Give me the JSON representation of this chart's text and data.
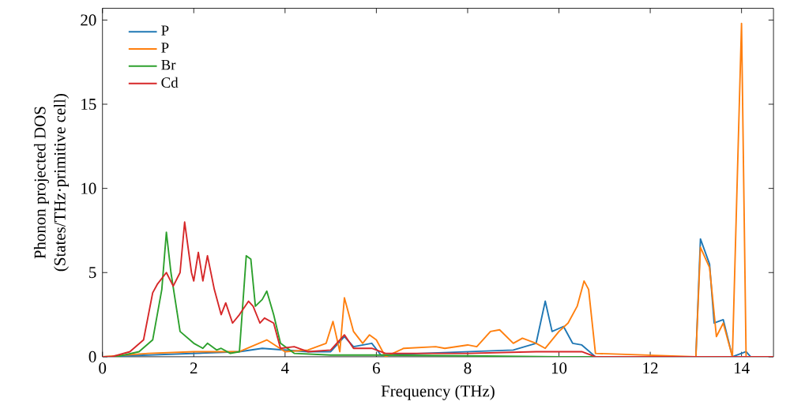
{
  "chart_data": {
    "type": "line",
    "xlabel": "Frequency (THz)",
    "ylabel": "Phonon projected DOS\n(States/THz·primitive cell)",
    "xlim": [
      0,
      14.7
    ],
    "ylim": [
      0,
      20.7
    ],
    "xticks": [
      0,
      2,
      4,
      6,
      8,
      10,
      12,
      14
    ],
    "yticks": [
      0,
      5,
      10,
      15,
      20
    ],
    "legend": "top left",
    "grid": false,
    "series": [
      {
        "name": "P",
        "color": "#1f77b4",
        "x": [
          0,
          1,
          2,
          3,
          3.5,
          4,
          4.5,
          5,
          5.3,
          5.5,
          5.9,
          6.1,
          7,
          8,
          9,
          9.5,
          9.7,
          9.85,
          10.1,
          10.3,
          10.5,
          10.8,
          13.0,
          13.1,
          13.3,
          13.4,
          13.6,
          13.8,
          14.1,
          14.2,
          14.7
        ],
        "values": [
          0,
          0.1,
          0.2,
          0.3,
          0.5,
          0.4,
          0.3,
          0.3,
          1.2,
          0.6,
          0.8,
          0.1,
          0.2,
          0.3,
          0.4,
          0.8,
          3.3,
          1.5,
          1.8,
          0.8,
          0.7,
          0,
          0,
          7.0,
          5.5,
          2.0,
          2.2,
          0,
          0.3,
          0,
          0
        ]
      },
      {
        "name": "P",
        "color": "#ff7f0e",
        "x": [
          0,
          1,
          2,
          3,
          3.6,
          4,
          4.5,
          4.9,
          5.05,
          5.2,
          5.3,
          5.5,
          5.7,
          5.85,
          6.0,
          6.2,
          6.6,
          7.3,
          7.5,
          8.0,
          8.2,
          8.5,
          8.7,
          9.0,
          9.2,
          9.5,
          9.7,
          10.0,
          10.2,
          10.4,
          10.55,
          10.65,
          10.8,
          13.0,
          13.1,
          13.3,
          13.45,
          13.6,
          13.8,
          14.0,
          14.1,
          14.7
        ],
        "values": [
          0,
          0.2,
          0.3,
          0.3,
          1.0,
          0.3,
          0.4,
          0.8,
          2.1,
          0.3,
          3.5,
          1.5,
          0.8,
          1.3,
          1.0,
          0,
          0.5,
          0.6,
          0.5,
          0.7,
          0.6,
          1.5,
          1.6,
          0.8,
          1.1,
          0.8,
          0.5,
          1.5,
          2.0,
          3.0,
          4.5,
          4.0,
          0.2,
          0,
          6.5,
          5.3,
          1.2,
          2.0,
          0,
          19.8,
          0,
          0
        ]
      },
      {
        "name": "Br",
        "color": "#2ca02c",
        "x": [
          0,
          0.3,
          0.8,
          1.1,
          1.3,
          1.4,
          1.5,
          1.7,
          2.0,
          2.2,
          2.3,
          2.5,
          2.6,
          2.8,
          3.0,
          3.15,
          3.25,
          3.35,
          3.5,
          3.6,
          3.75,
          3.9,
          4.2,
          5,
          6,
          8,
          10,
          14.7
        ],
        "values": [
          0,
          0,
          0.3,
          1.0,
          4.0,
          7.4,
          5.0,
          1.5,
          0.8,
          0.5,
          0.8,
          0.4,
          0.5,
          0.2,
          0.3,
          6.0,
          5.8,
          3.0,
          3.4,
          3.9,
          2.5,
          0.8,
          0.2,
          0.1,
          0.1,
          0.05,
          0,
          0
        ]
      },
      {
        "name": "Cd",
        "color": "#d62728",
        "x": [
          0,
          0.2,
          0.6,
          0.9,
          1.1,
          1.2,
          1.4,
          1.55,
          1.7,
          1.8,
          1.95,
          2.0,
          2.1,
          2.2,
          2.3,
          2.45,
          2.6,
          2.7,
          2.85,
          3.0,
          3.2,
          3.3,
          3.45,
          3.55,
          3.75,
          3.9,
          4.2,
          4.5,
          5.0,
          5.3,
          5.5,
          5.9,
          6.2,
          8,
          9.5,
          10.5,
          10.8,
          14.7
        ],
        "values": [
          0,
          0,
          0.3,
          1.0,
          3.8,
          4.3,
          5.0,
          4.2,
          5.0,
          8.0,
          5.0,
          4.5,
          6.2,
          4.5,
          6.0,
          4.0,
          2.5,
          3.2,
          2.0,
          2.5,
          3.3,
          3.0,
          2.0,
          2.3,
          2.0,
          0.5,
          0.6,
          0.3,
          0.4,
          1.3,
          0.5,
          0.5,
          0.2,
          0.2,
          0.3,
          0.3,
          0,
          0
        ]
      }
    ]
  }
}
